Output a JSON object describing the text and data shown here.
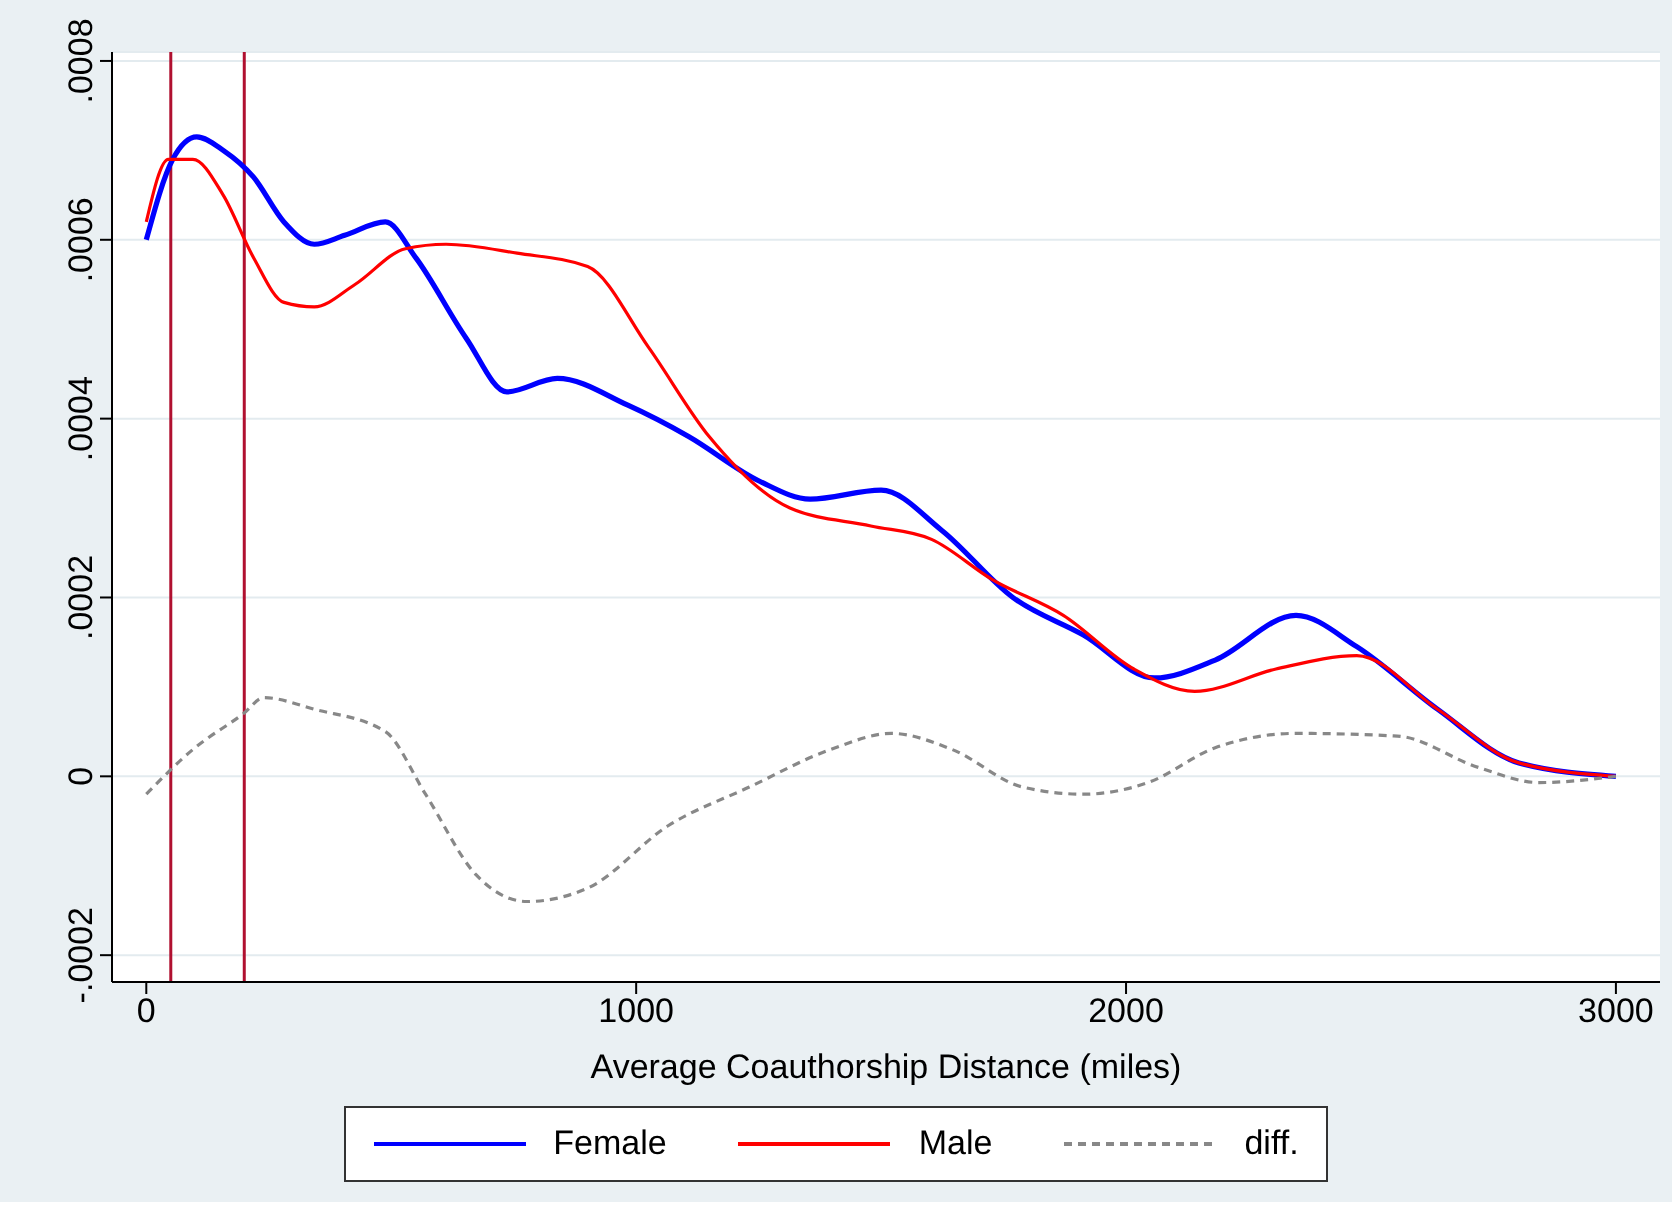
{
  "chart_data": {
    "type": "line",
    "xlabel": "Average Coauthorship Distance (miles)",
    "xlim": [
      -70,
      3090
    ],
    "xticks": [
      0,
      1000,
      2000,
      3000
    ],
    "ylim": [
      -0.00023,
      0.00081
    ],
    "yticks": [
      {
        "value": -0.0002,
        "label": "-.0002"
      },
      {
        "value": 0,
        "label": "0"
      },
      {
        "value": 0.0002,
        "label": ".0002"
      },
      {
        "value": 0.0004,
        "label": ".0004"
      },
      {
        "value": 0.0006,
        "label": ".0006"
      },
      {
        "value": 0.0008,
        "label": ".0008"
      }
    ],
    "grid": "y",
    "legend": "bottom",
    "marker": "none",
    "ref_lines": [
      {
        "axis": "x",
        "value": 50,
        "color": "#b01030"
      },
      {
        "axis": "x",
        "value": 200,
        "color": "#b01030"
      }
    ],
    "series": [
      {
        "name": "Female",
        "color": "#0000ff",
        "line_style": "solid",
        "x": [
          0,
          54,
          103,
          157,
          219,
          281,
          343,
          405,
          488,
          550,
          653,
          736,
          839,
          983,
          1107,
          1252,
          1355,
          1500,
          1624,
          1769,
          1913,
          2058,
          2182,
          2347,
          2471,
          2636,
          2802,
          3000
        ],
        "values": [
          0.0006,
          0.00069,
          0.000715,
          0.0007,
          0.00067,
          0.00062,
          0.000595,
          0.000605,
          0.00062,
          0.00058,
          0.00049,
          0.00043,
          0.000445,
          0.000415,
          0.00038,
          0.00033,
          0.00031,
          0.00032,
          0.000275,
          0.0002,
          0.000158,
          0.00011,
          0.00013,
          0.00018,
          0.000145,
          7.5e-05,
          1.5e-05,
          0
        ]
      },
      {
        "name": "Male",
        "color": "#ff0000",
        "line_style": "solid",
        "x": [
          0,
          45,
          95,
          157,
          219,
          281,
          343,
          426,
          529,
          612,
          757,
          901,
          1025,
          1149,
          1314,
          1479,
          1603,
          1727,
          1872,
          2016,
          2140,
          2306,
          2471,
          2636,
          2802,
          3000
        ],
        "values": [
          0.00062,
          0.00069,
          0.00069,
          0.00065,
          0.00058,
          0.00053,
          0.000525,
          0.00055,
          0.00059,
          0.000595,
          0.000585,
          0.00057,
          0.00048,
          0.00038,
          0.0003,
          0.00028,
          0.000265,
          0.00022,
          0.00018,
          0.00012,
          9.5e-05,
          0.00012,
          0.000135,
          7.5e-05,
          1.5e-05,
          0
        ]
      },
      {
        "name": "diff.",
        "color": "#888888",
        "line_style": "dashed",
        "x": [
          0,
          95,
          198,
          240,
          343,
          488,
          570,
          673,
          777,
          901,
          1066,
          1231,
          1397,
          1521,
          1645,
          1789,
          1913,
          2045,
          2182,
          2347,
          2554,
          2719,
          2843,
          3000
        ],
        "values": [
          -2e-05,
          3e-05,
          7e-05,
          8.8e-05,
          7.5e-05,
          5e-05,
          -2e-05,
          -0.00011,
          -0.00014,
          -0.000125,
          -5.5e-05,
          -1.2e-05,
          3e-05,
          4.8e-05,
          3e-05,
          -1.2e-05,
          -2e-05,
          -7e-06,
          3.2e-05,
          4.8e-05,
          4.5e-05,
          1e-05,
          -7e-06,
          0
        ]
      }
    ]
  }
}
